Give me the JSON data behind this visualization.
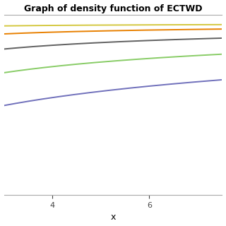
{
  "title": "Graph of density function of ECTWD",
  "xlabel": "x",
  "xlim": [
    3.0,
    7.5
  ],
  "ylim": [
    0.0,
    1.05
  ],
  "xticks": [
    4,
    6
  ],
  "yticks": [],
  "background_color": "#ffffff",
  "curve_params": [
    {
      "color": "#D4C840",
      "lam": 3.5,
      "alpha_p": 0.18
    },
    {
      "color": "#E88000",
      "lam": 2.2,
      "alpha_p": 0.22
    },
    {
      "color": "#606060",
      "lam": 1.4,
      "alpha_p": 0.28
    },
    {
      "color": "#88CC66",
      "lam": 0.85,
      "alpha_p": 0.35
    },
    {
      "color": "#7070BB",
      "lam": 0.45,
      "alpha_p": 0.45
    }
  ],
  "linewidth": 1.4,
  "title_fontsize": 9,
  "xlabel_fontsize": 9,
  "tick_fontsize": 8
}
